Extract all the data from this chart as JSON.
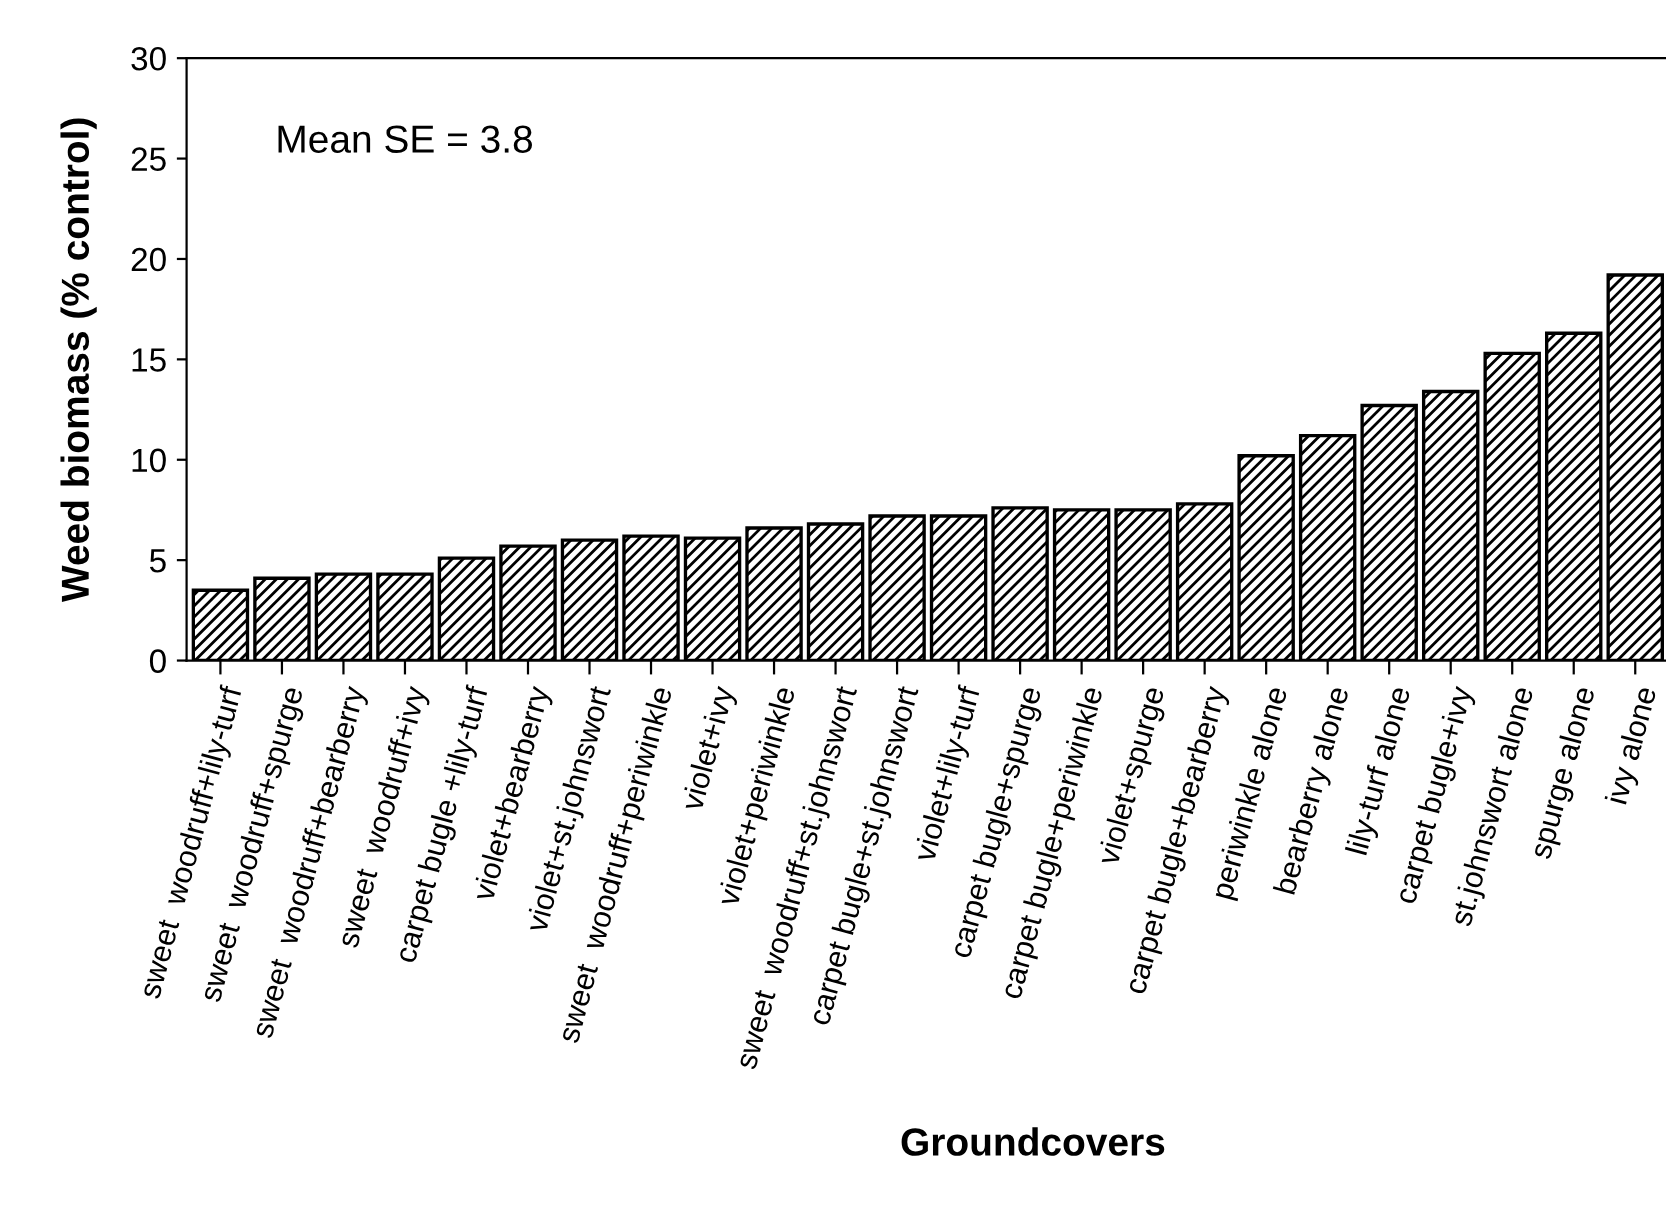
{
  "chart_data": {
    "type": "bar",
    "xlabel": "Groundcovers",
    "ylabel": "Weed biomass (% control)",
    "annotations": [
      "Mean SE = 3.8"
    ],
    "categories": [
      "sweet  woodruff+lily-turf",
      "sweet  woodruff+spurge",
      "sweet  woodruff+bearberry",
      "sweet  woodruff+ivy",
      "carpet bugle +lily-turf",
      "violet+bearberry",
      "violet+st.johnswort",
      "sweet  woodruff+periwinkle",
      "violet+ivy",
      "violet+periwinkle",
      "sweet  woodruff+st.johnswort",
      "carpet bugle+st.johnswort",
      "violet+lily-turf",
      "carpet bugle+spurge",
      "carpet bugle+periwinkle",
      "violet+spurge",
      "carpet bugle+bearberry",
      "periwinkle alone",
      "bearberry alone",
      "lily-turf alone",
      "carpet bugle+ivy",
      "st.johnswort alone",
      "spurge alone",
      "ivy alone"
    ],
    "values": [
      3.5,
      4.1,
      4.3,
      4.3,
      5.1,
      5.7,
      6.0,
      6.2,
      6.1,
      6.6,
      6.8,
      7.2,
      7.2,
      7.6,
      7.5,
      7.5,
      7.8,
      10.2,
      11.2,
      12.7,
      13.4,
      15.3,
      16.3,
      19.2
    ],
    "color": "#000000",
    "ylim": [
      0,
      30
    ],
    "yticks": [
      0,
      5,
      10,
      15,
      20,
      25,
      30
    ],
    "grid": false,
    "legend": false
  }
}
